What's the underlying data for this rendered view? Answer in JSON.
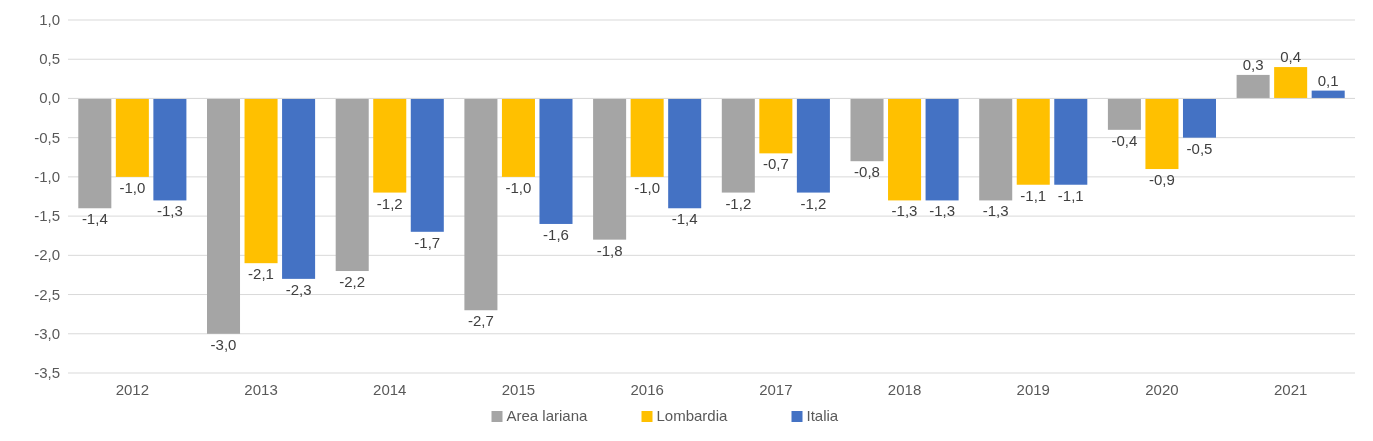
{
  "chart_data": {
    "type": "bar",
    "categories": [
      "2012",
      "2013",
      "2014",
      "2015",
      "2016",
      "2017",
      "2018",
      "2019",
      "2020",
      "2021"
    ],
    "series": [
      {
        "name": "Area lariana",
        "color": "#a5a5a5",
        "values": [
          -1.4,
          -3.0,
          -2.2,
          -2.7,
          -1.8,
          -1.2,
          -0.8,
          -1.3,
          -0.4,
          0.3
        ],
        "value_labels": [
          "-1,4",
          "-3,0",
          "-2,2",
          "-2,7",
          "-1,8",
          "-1,2",
          "-0,8",
          "-1,3",
          "-0,4",
          "0,3"
        ]
      },
      {
        "name": "Lombardia",
        "color": "#ffc000",
        "values": [
          -1.0,
          -2.1,
          -1.2,
          -1.0,
          -1.0,
          -0.7,
          -1.3,
          -1.1,
          -0.9,
          0.4
        ],
        "value_labels": [
          "-1,0",
          "-2,1",
          "-1,2",
          "-1,0",
          "-1,0",
          "-0,7",
          "-1,3",
          "-1,1",
          "-0,9",
          "0,4"
        ]
      },
      {
        "name": "Italia",
        "color": "#4472c4",
        "values": [
          -1.3,
          -2.3,
          -1.7,
          -1.6,
          -1.4,
          -1.2,
          -1.3,
          -1.1,
          -0.5,
          0.1
        ],
        "value_labels": [
          "-1,3",
          "-2,3",
          "-1,7",
          "-1,6",
          "-1,4",
          "-1,2",
          "-1,3",
          "-1,1",
          "-0,5",
          "0,1"
        ]
      }
    ],
    "ylim": [
      -3.5,
      1.0
    ],
    "yticks": [
      {
        "value": -3.5,
        "label": "-3,5"
      },
      {
        "value": -3.0,
        "label": "-3,0"
      },
      {
        "value": -2.5,
        "label": "-2,5"
      },
      {
        "value": -2.0,
        "label": "-2,0"
      },
      {
        "value": -1.5,
        "label": "-1,5"
      },
      {
        "value": -1.0,
        "label": "-1,0"
      },
      {
        "value": -0.5,
        "label": "-0,5"
      },
      {
        "value": 0.0,
        "label": "0,0"
      },
      {
        "value": 0.5,
        "label": "0,5"
      },
      {
        "value": 1.0,
        "label": "1,0"
      }
    ],
    "grid": "y",
    "legend": "bottom"
  }
}
